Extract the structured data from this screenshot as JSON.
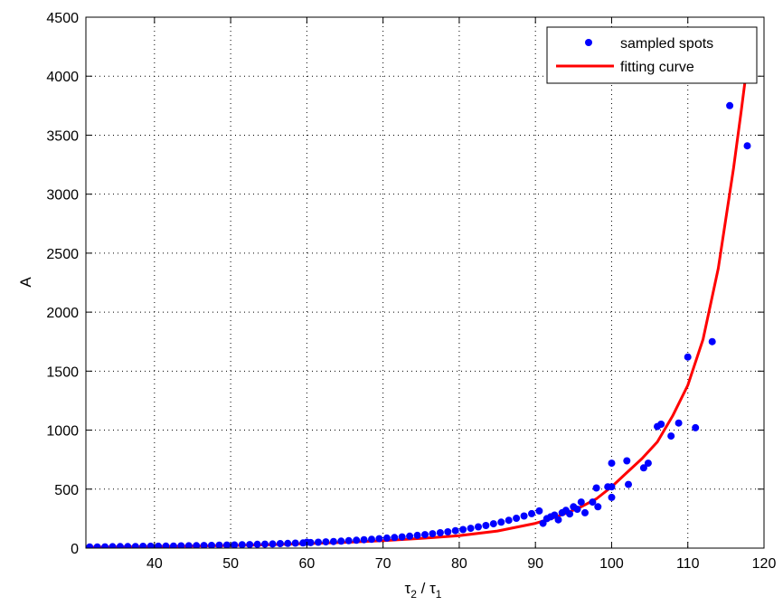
{
  "chart_data": {
    "type": "scatter",
    "title": "",
    "xlabel": {
      "base": "τ",
      "sub1": "2",
      "sep": " / ",
      "base2": "τ",
      "sub2": "1"
    },
    "ylabel": "A",
    "xlim": [
      31,
      120
    ],
    "ylim": [
      0,
      4500
    ],
    "xticks": [
      40,
      50,
      60,
      70,
      80,
      90,
      100,
      110,
      120
    ],
    "yticks": [
      0,
      500,
      1000,
      1500,
      2000,
      2500,
      3000,
      3500,
      4000,
      4500
    ],
    "grid": true,
    "legend": {
      "position": "top-right",
      "entries": [
        "sampled spots",
        "fitting curve"
      ]
    },
    "colors": {
      "points": "#0000ff",
      "curve": "#ff0000",
      "grid": "#000000"
    },
    "series": [
      {
        "name": "sampled spots",
        "kind": "scatter",
        "x": [
          31.5,
          32.5,
          33.5,
          34.5,
          35.5,
          36.5,
          37.5,
          38.5,
          39.5,
          40.5,
          41.5,
          42.5,
          43.5,
          44.5,
          45.5,
          46.5,
          47.5,
          48.5,
          49.5,
          50.5,
          51.5,
          52.5,
          53.5,
          54.5,
          55.5,
          56.5,
          57.5,
          58.5,
          59.5,
          60,
          60.5,
          61.5,
          62.5,
          63.5,
          64.5,
          65.5,
          66.5,
          67.5,
          68.5,
          69.5,
          70.5,
          71.5,
          72.5,
          73.5,
          74.5,
          75.5,
          76.5,
          77.5,
          78.5,
          79.5,
          80.5,
          81.5,
          82.5,
          83.5,
          84.5,
          85.5,
          86.5,
          87.5,
          88.5,
          89.5,
          90.5,
          91,
          91.5,
          92,
          92.5,
          93,
          93.5,
          94,
          94.5,
          95,
          95.5,
          96,
          96.5,
          97.5,
          98,
          98.2,
          99.5,
          100,
          100,
          100,
          102,
          102.2,
          104.2,
          104.8,
          106,
          106.5,
          107.8,
          108.8,
          110,
          111,
          113.2,
          115.5,
          117.8
        ],
        "y": [
          10,
          10,
          11,
          12,
          13,
          13,
          14,
          15,
          16,
          16,
          17,
          18,
          19,
          20,
          21,
          22,
          23,
          25,
          26,
          27,
          29,
          30,
          32,
          34,
          35,
          38,
          40,
          42,
          44,
          50,
          47,
          50,
          53,
          56,
          59,
          63,
          67,
          71,
          75,
          80,
          85,
          90,
          95,
          101,
          108,
          114,
          122,
          130,
          138,
          148,
          157,
          168,
          180,
          192,
          206,
          220,
          236,
          253,
          272,
          292,
          315,
          210,
          250,
          265,
          280,
          240,
          300,
          320,
          290,
          350,
          330,
          390,
          300,
          390,
          510,
          350,
          520,
          720,
          520,
          430,
          740,
          540,
          680,
          720,
          1030,
          1050,
          950,
          1060,
          1620,
          1020,
          1750,
          3750,
          3410
        ]
      },
      {
        "name": "fitting curve",
        "kind": "line",
        "x": [
          31,
          35,
          40,
          45,
          50,
          55,
          60,
          65,
          70,
          75,
          80,
          85,
          90,
          92,
          94,
          96,
          98,
          100,
          102,
          104,
          106,
          108,
          110,
          112,
          114,
          116,
          117,
          118
        ],
        "y": [
          8,
          10,
          13,
          17,
          22,
          29,
          38,
          49,
          63,
          82,
          106,
          145,
          210,
          248,
          295,
          350,
          418,
          520,
          640,
          760,
          900,
          1120,
          1380,
          1770,
          2370,
          3220,
          3700,
          4200
        ]
      }
    ]
  }
}
